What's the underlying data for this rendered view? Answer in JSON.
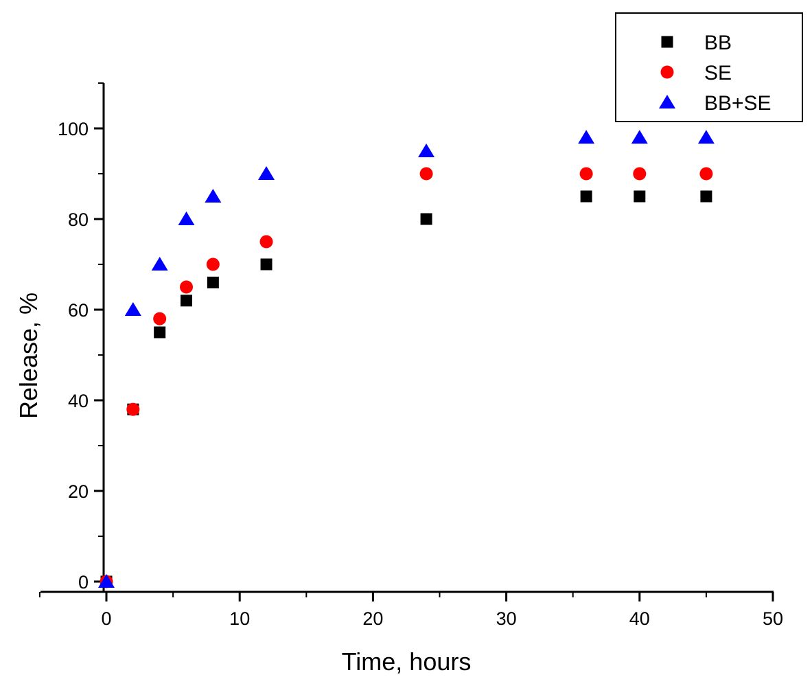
{
  "chart_data": {
    "type": "scatter",
    "title": "",
    "xlabel": "Time, hours",
    "ylabel": "Release,  %",
    "xlim": [
      -5,
      50
    ],
    "ylim": [
      -2,
      110
    ],
    "xticks": [
      0,
      10,
      20,
      30,
      40,
      50
    ],
    "xtick_labels": [
      "0",
      "10",
      "20",
      "30",
      "40",
      "50"
    ],
    "yticks": [
      0,
      20,
      40,
      60,
      80,
      100
    ],
    "ytick_labels": [
      "0",
      "20",
      "40",
      "60",
      "80",
      "100"
    ],
    "grid": false,
    "legend_position": "top-right",
    "series": [
      {
        "name": "BB",
        "marker": "square",
        "color": "#000000",
        "x": [
          0,
          2,
          4,
          6,
          8,
          12,
          24,
          36,
          40,
          45
        ],
        "y": [
          0,
          38,
          55,
          62,
          66,
          70,
          80,
          85,
          85,
          85
        ]
      },
      {
        "name": "SE",
        "marker": "circle",
        "color": "#ff0000",
        "x": [
          0,
          2,
          4,
          6,
          8,
          12,
          24,
          36,
          40,
          45
        ],
        "y": [
          0,
          38,
          58,
          65,
          70,
          75,
          90,
          90,
          90,
          90
        ]
      },
      {
        "name": "BB+SE",
        "marker": "triangle",
        "color": "#0000ff",
        "x": [
          0,
          2,
          4,
          6,
          8,
          12,
          24,
          36,
          40,
          45
        ],
        "y": [
          0,
          60,
          70,
          80,
          85,
          90,
          95,
          98,
          98,
          98
        ]
      }
    ]
  }
}
